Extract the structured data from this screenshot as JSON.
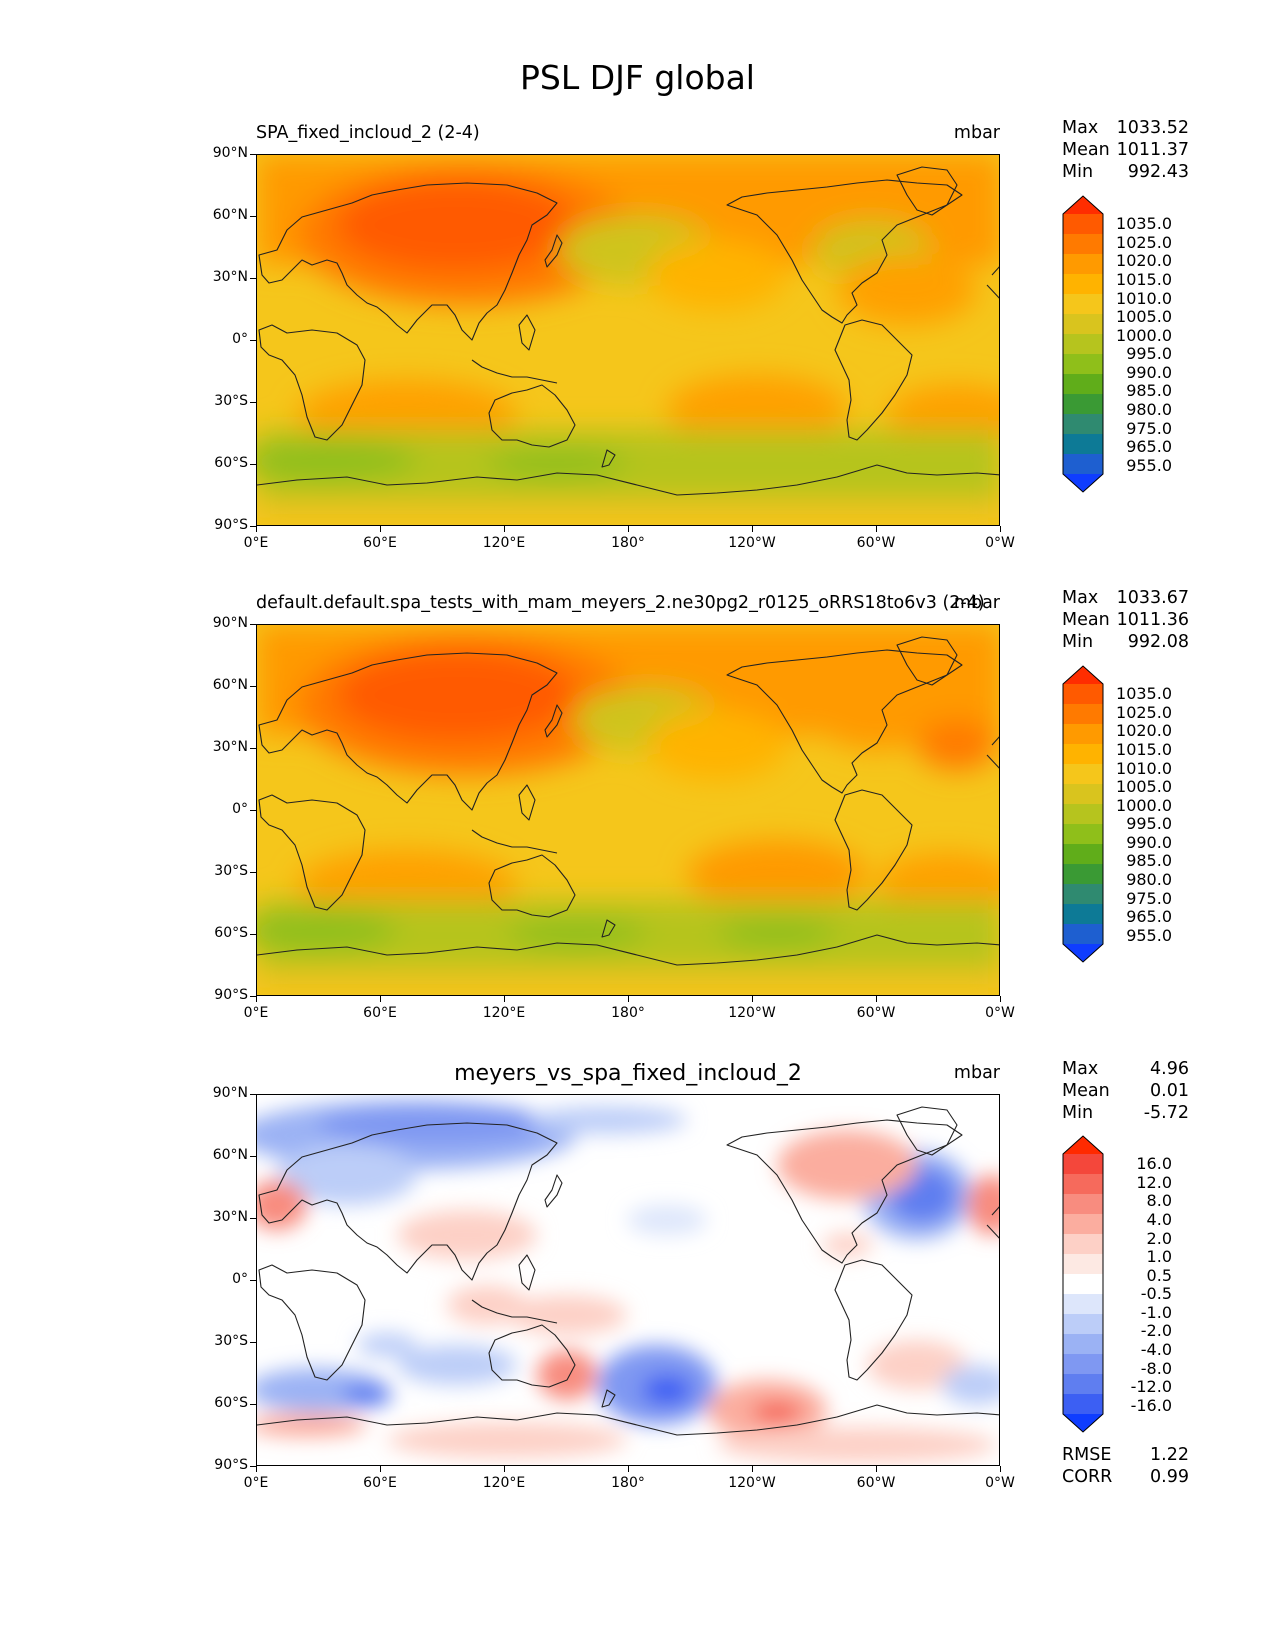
{
  "figure": {
    "suptitle": "PSL DJF global"
  },
  "lat_ticks": [
    "90°N",
    "60°N",
    "30°N",
    "0°",
    "30°S",
    "60°S",
    "90°S"
  ],
  "lon_ticks": [
    "0°E",
    "60°E",
    "120°E",
    "180°",
    "120°W",
    "60°W",
    "0°W"
  ],
  "panels": [
    {
      "title": "SPA_fixed_incloud_2 (2-4)",
      "units": "mbar",
      "stats": {
        "max_label": "Max",
        "max": "1033.52",
        "mean_label": "Mean",
        "mean": "1011.37",
        "min_label": "Min",
        "min": "992.43"
      },
      "colorbar": {
        "levels": [
          "1035.0",
          "1025.0",
          "1020.0",
          "1015.0",
          "1010.0",
          "1005.0",
          "1000.0",
          "995.0",
          "990.0",
          "985.0",
          "980.0",
          "975.0",
          "965.0",
          "955.0"
        ],
        "colors": [
          "#ff2d00",
          "#ff5a00",
          "#ff7a00",
          "#ff9a00",
          "#ffb300",
          "#f5c61b",
          "#d9c41e",
          "#b6c41e",
          "#8fbf1a",
          "#60ad1a",
          "#3a9a34",
          "#2f8a70",
          "#0d7a96",
          "#1e5fd0",
          "#0f3dff"
        ]
      },
      "chart_data": {
        "type": "heatmap",
        "variable": "PSL",
        "season": "DJF",
        "units": "mbar",
        "x_range": [
          0,
          360
        ],
        "y_range": [
          -90,
          90
        ],
        "max": 1033.52,
        "mean": 1011.37,
        "min": 992.43
      }
    },
    {
      "title": "default.default.spa_tests_with_mam_meyers_2.ne30pg2_r0125_oRRS18to6v3 (2-4)",
      "units": "mbar",
      "stats": {
        "max_label": "Max",
        "max": "1033.67",
        "mean_label": "Mean",
        "mean": "1011.36",
        "min_label": "Min",
        "min": "992.08"
      },
      "colorbar": {
        "levels": [
          "1035.0",
          "1025.0",
          "1020.0",
          "1015.0",
          "1010.0",
          "1005.0",
          "1000.0",
          "995.0",
          "990.0",
          "985.0",
          "980.0",
          "975.0",
          "965.0",
          "955.0"
        ],
        "colors": [
          "#ff2d00",
          "#ff5a00",
          "#ff7a00",
          "#ff9a00",
          "#ffb300",
          "#f5c61b",
          "#d9c41e",
          "#b6c41e",
          "#8fbf1a",
          "#60ad1a",
          "#3a9a34",
          "#2f8a70",
          "#0d7a96",
          "#1e5fd0",
          "#0f3dff"
        ]
      },
      "chart_data": {
        "type": "heatmap",
        "variable": "PSL",
        "season": "DJF",
        "units": "mbar",
        "x_range": [
          0,
          360
        ],
        "y_range": [
          -90,
          90
        ],
        "max": 1033.67,
        "mean": 1011.36,
        "min": 992.08
      }
    },
    {
      "title": "meyers_vs_spa_fixed_incloud_2",
      "units": "mbar",
      "stats": {
        "max_label": "Max",
        "max": "4.96",
        "mean_label": "Mean",
        "mean": "0.01",
        "min_label": "Min",
        "min": "-5.72",
        "rmse_label": "RMSE",
        "rmse": "1.22",
        "corr_label": "CORR",
        "corr": "0.99"
      },
      "colorbar": {
        "levels": [
          "16.0",
          "12.0",
          "8.0",
          "4.0",
          "2.0",
          "1.0",
          "0.5",
          "-0.5",
          "-1.0",
          "-2.0",
          "-4.0",
          "-8.0",
          "-12.0",
          "-16.0"
        ],
        "colors": [
          "#ff2a00",
          "#f4473b",
          "#f66a5c",
          "#f88c7f",
          "#fbad9f",
          "#fdd0c6",
          "#fde9e3",
          "#ffffff",
          "#dde6fb",
          "#bccdf8",
          "#9bb2f4",
          "#7f98f2",
          "#5f7ef0",
          "#3c5ff3",
          "#0f3dff"
        ]
      },
      "chart_data": {
        "type": "heatmap",
        "variable": "PSL difference",
        "season": "DJF",
        "units": "mbar",
        "x_range": [
          0,
          360
        ],
        "y_range": [
          -90,
          90
        ],
        "max": 4.96,
        "mean": 0.01,
        "min": -5.72,
        "rmse": 1.22,
        "corr": 0.99
      }
    }
  ]
}
